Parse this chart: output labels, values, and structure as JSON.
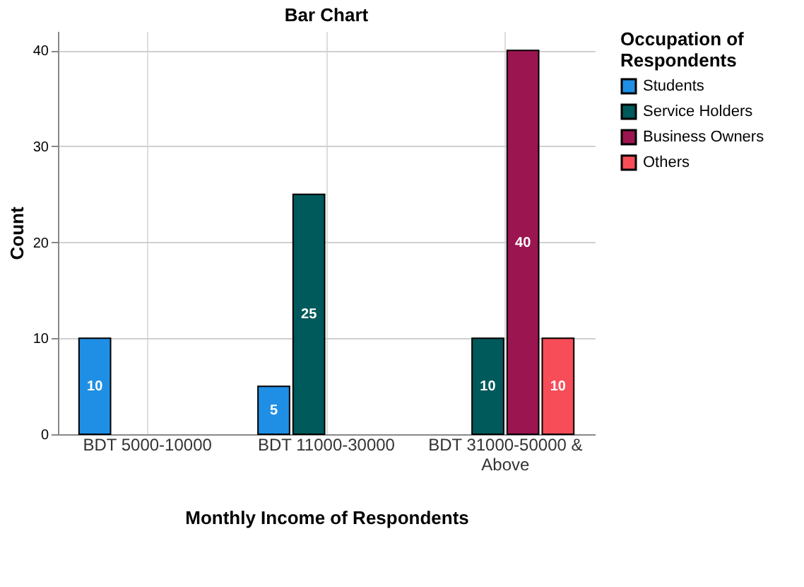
{
  "chart_data": {
    "type": "bar",
    "title": "Bar Chart",
    "xlabel": "Monthly Income of Respondents",
    "ylabel": "Count",
    "legend_title": "Occupation of Respondents",
    "categories": [
      "BDT 5000-10000",
      "BDT 11000-30000",
      "BDT 31000-50000 & Above"
    ],
    "series": [
      {
        "name": "Students",
        "color": "#1f8fe5",
        "values": [
          10,
          5,
          null
        ]
      },
      {
        "name": "Service Holders",
        "color": "#00595a",
        "values": [
          null,
          25,
          10
        ]
      },
      {
        "name": "Business Owners",
        "color": "#9b1550",
        "values": [
          null,
          null,
          40
        ]
      },
      {
        "name": "Others",
        "color": "#f74d58",
        "values": [
          null,
          null,
          10
        ]
      }
    ],
    "ylim": [
      0,
      42
    ],
    "yticks": [
      0,
      10,
      20,
      30,
      40
    ],
    "grid": true,
    "legend": "top right",
    "data_labels": true
  }
}
